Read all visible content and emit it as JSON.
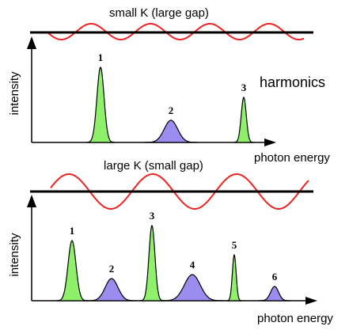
{
  "top": {
    "title": "small K (large gap)",
    "ylabel": "intensity",
    "xlabel": "photon energy",
    "annotation": "harmonics",
    "peaks": [
      {
        "label": "1",
        "color": "green",
        "center": 127,
        "height": 95,
        "width": 4.5
      },
      {
        "label": "2",
        "color": "purple",
        "center": 216,
        "height": 28,
        "width": 8.5
      },
      {
        "label": "3",
        "color": "green",
        "center": 308,
        "height": 57,
        "width": 3.2
      }
    ]
  },
  "bottom": {
    "title": "large K (small gap)",
    "ylabel": "intensity",
    "xlabel": "photon energy",
    "peaks": [
      {
        "label": "1",
        "color": "green",
        "center": 91,
        "height": 76,
        "width": 5.0
      },
      {
        "label": "2",
        "color": "purple",
        "center": 141,
        "height": 28,
        "width": 8.0
      },
      {
        "label": "3",
        "color": "green",
        "center": 192,
        "height": 95,
        "width": 3.8
      },
      {
        "label": "4",
        "color": "purple",
        "center": 243,
        "height": 33,
        "width": 10.0
      },
      {
        "label": "5",
        "color": "green",
        "center": 296,
        "height": 58,
        "width": 2.4
      },
      {
        "label": "6",
        "color": "purple",
        "center": 347,
        "height": 18,
        "width": 5.0
      }
    ]
  },
  "colors": {
    "green": "#8ff06a",
    "purple": "#9b8cf0",
    "wave": "#ee2222",
    "axis": "#000000"
  }
}
